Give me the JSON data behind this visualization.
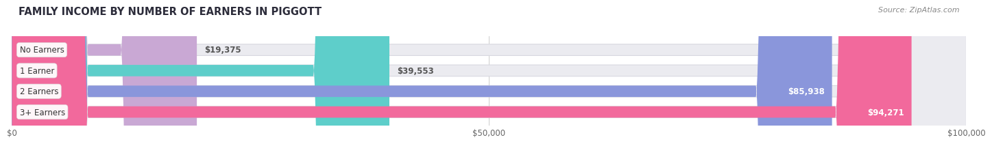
{
  "title": "FAMILY INCOME BY NUMBER OF EARNERS IN PIGGOTT",
  "source": "Source: ZipAtlas.com",
  "categories": [
    "No Earners",
    "1 Earner",
    "2 Earners",
    "3+ Earners"
  ],
  "values": [
    19375,
    39553,
    85938,
    94271
  ],
  "labels": [
    "$19,375",
    "$39,553",
    "$85,938",
    "$94,271"
  ],
  "bar_colors": [
    "#c9a8d4",
    "#5ececa",
    "#8a96db",
    "#f2699c"
  ],
  "bar_bg_color": "#ebebf0",
  "bg_color": "#ffffff",
  "xmax": 100000,
  "xtick_labels": [
    "$0",
    "$50,000",
    "$100,000"
  ],
  "xtick_values": [
    0,
    50000,
    100000
  ],
  "title_fontsize": 10.5,
  "source_fontsize": 8,
  "label_inside_threshold": 0.55
}
